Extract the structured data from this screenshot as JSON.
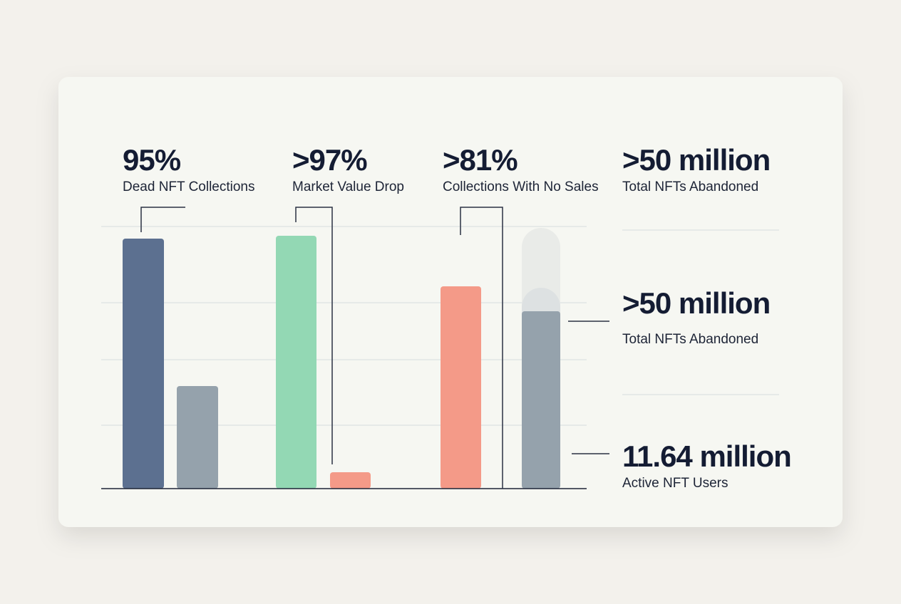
{
  "stats": [
    {
      "value": "95%",
      "label": "Dead NFT Collections"
    },
    {
      "value": ">97%",
      "label": "Market Value Drop"
    },
    {
      "value": ">81%",
      "label": "Collections With No Sales"
    },
    {
      "value": ">50 million",
      "label": "Total NFTs Abandoned"
    },
    {
      "value": ">50 million",
      "label": "Total NFTs Abandoned"
    },
    {
      "value": "11.64 million",
      "label": "Active NFT Users"
    }
  ]
}
